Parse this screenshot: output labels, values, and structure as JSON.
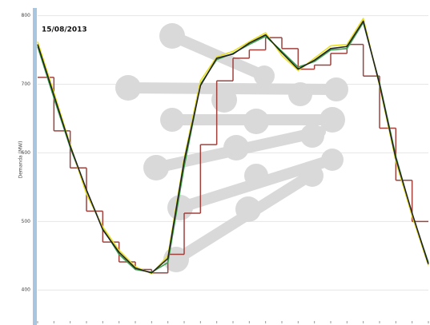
{
  "chart_data": {
    "type": "line",
    "annotation": "15/08/2013",
    "y_label": "Demanda (MW)",
    "x": [
      0,
      1,
      2,
      3,
      4,
      5,
      6,
      7,
      8,
      9,
      10,
      11,
      12,
      13,
      14,
      15,
      16,
      17,
      18,
      19,
      20,
      21,
      22,
      23,
      24
    ],
    "xlim": [
      0,
      24
    ],
    "ylim": [
      370,
      810
    ],
    "yticks": [
      400,
      500,
      600,
      700,
      800
    ],
    "grid": true,
    "steps": {
      "color": "#a0413c",
      "x": [
        0,
        1,
        2,
        3,
        4,
        5,
        6,
        7,
        8,
        9,
        10,
        11,
        12,
        13,
        14,
        15,
        16,
        17,
        18,
        19,
        20,
        21,
        22,
        23
      ],
      "values": [
        710,
        632,
        578,
        515,
        470,
        441,
        430,
        425,
        452,
        512,
        612,
        705,
        738,
        750,
        768,
        752,
        722,
        728,
        745,
        758,
        712,
        636,
        560,
        500
      ]
    },
    "series": [
      {
        "color": "#3aa04a",
        "values": [
          755,
          680,
          608,
          545,
          490,
          452,
          430,
          426,
          440,
          580,
          700,
          736,
          745,
          758,
          770,
          748,
          725,
          733,
          750,
          752,
          790,
          702,
          595,
          510,
          440
        ]
      },
      {
        "color": "#e8e020",
        "values": [
          762,
          688,
          612,
          540,
          492,
          458,
          434,
          424,
          450,
          592,
          705,
          740,
          748,
          762,
          775,
          742,
          720,
          738,
          756,
          758,
          796,
          698,
          588,
          508,
          436
        ]
      },
      {
        "color": "#222222",
        "values": [
          758,
          684,
          610,
          546,
          488,
          455,
          432,
          425,
          446,
          588,
          698,
          738,
          744,
          760,
          772,
          746,
          722,
          735,
          752,
          755,
          792,
          700,
          592,
          512,
          438
        ]
      }
    ]
  }
}
